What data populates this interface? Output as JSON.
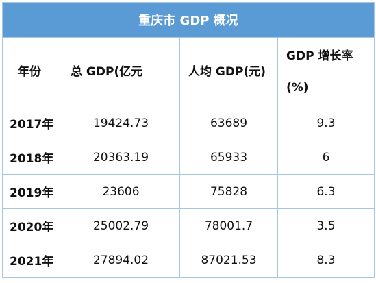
{
  "table": {
    "title": "重庆市 GDP 概况",
    "header": [
      "年份",
      "总 GDP(亿元",
      "人均 GDP(元)",
      "GDP 增长率 (%)"
    ],
    "rows": [
      [
        "2017年",
        "19424.73",
        "63689",
        "9.3"
      ],
      [
        "2018年",
        "20363.19",
        "65933",
        "6"
      ],
      [
        "2019年",
        "23606",
        "75828",
        "6.3"
      ],
      [
        "2020年",
        "25002.79",
        "78001.7",
        "3.5"
      ],
      [
        "2021年",
        "27894.02",
        "87021.53",
        "8.3"
      ]
    ]
  }
}
